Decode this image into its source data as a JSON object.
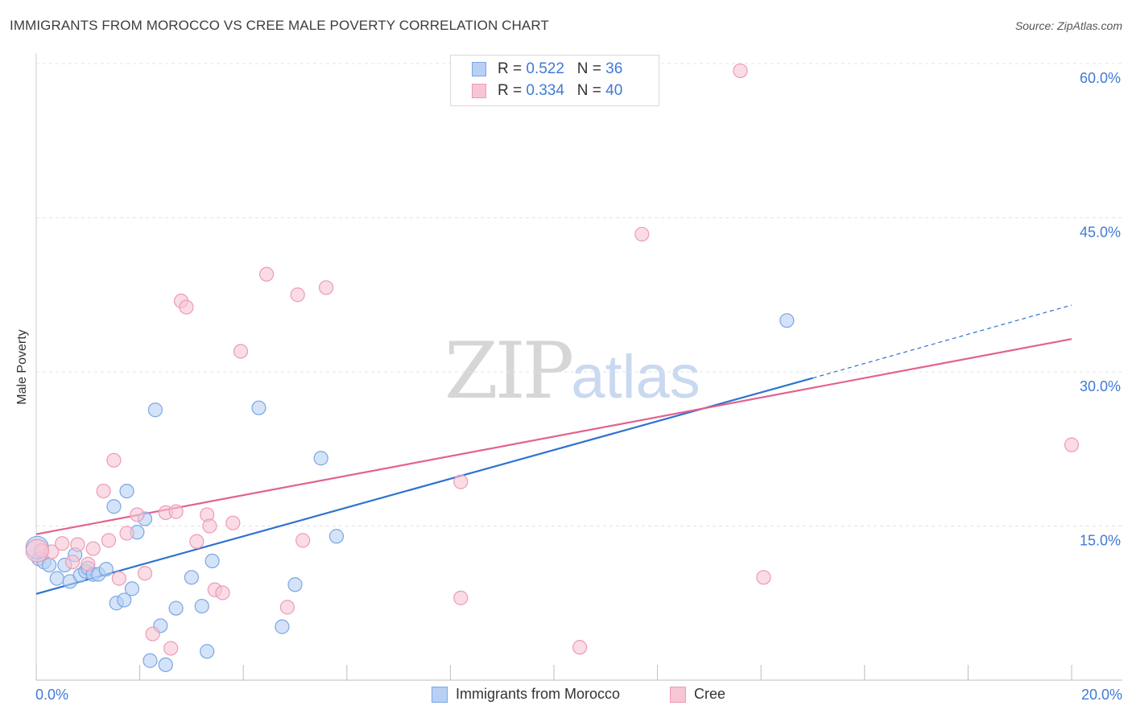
{
  "header": {
    "title": "IMMIGRANTS FROM MOROCCO VS CREE MALE POVERTY CORRELATION CHART",
    "source": "Source: ZipAtlas.com"
  },
  "legend": {
    "series1": {
      "r_label": "R =",
      "r_value": "0.522",
      "n_label": "N =",
      "n_value": "36"
    },
    "series2": {
      "r_label": "R =",
      "r_value": "0.334",
      "n_label": "N =",
      "n_value": "40"
    }
  },
  "watermark": {
    "zip": "ZIP",
    "atlas": "atlas"
  },
  "colors": {
    "blue_fill": "#b8d0f3",
    "blue_stroke": "#7aa6e6",
    "blue_line": "#2e72d2",
    "pink_fill": "#f7c5d4",
    "pink_stroke": "#ee9ab4",
    "pink_line": "#e2628f",
    "tick_label": "#3f7ad6",
    "grid": "#e3e3e3"
  },
  "chart_data": {
    "type": "scatter",
    "title": "IMMIGRANTS FROM MOROCCO VS CREE MALE POVERTY CORRELATION CHART",
    "xlabel": "",
    "ylabel": "Male Poverty",
    "xlim": [
      0,
      20
    ],
    "ylim": [
      0,
      60
    ],
    "x_tick_labels": [
      "0.0%",
      "20.0%"
    ],
    "y_ticks": [
      15,
      30,
      45,
      60
    ],
    "y_tick_labels": [
      "15.0%",
      "30.0%",
      "45.0%",
      "60.0%"
    ],
    "grid": "horizontal dashed",
    "legend_position": "top-center",
    "series": [
      {
        "name": "Immigrants from Morocco",
        "color": "#b8d0f3",
        "r": 0.522,
        "n": 36,
        "points": [
          [
            0.05,
            11.8
          ],
          [
            0.15,
            11.5
          ],
          [
            0.25,
            11.2
          ],
          [
            0.4,
            9.9
          ],
          [
            0.55,
            11.2
          ],
          [
            0.65,
            9.6
          ],
          [
            0.75,
            12.2
          ],
          [
            0.85,
            10.2
          ],
          [
            0.95,
            10.6
          ],
          [
            1.0,
            10.9
          ],
          [
            1.1,
            10.3
          ],
          [
            1.2,
            10.3
          ],
          [
            1.35,
            10.8
          ],
          [
            1.5,
            16.9
          ],
          [
            1.55,
            7.5
          ],
          [
            1.7,
            7.8
          ],
          [
            1.75,
            18.4
          ],
          [
            1.85,
            8.9
          ],
          [
            1.95,
            14.4
          ],
          [
            2.1,
            15.7
          ],
          [
            2.2,
            1.9
          ],
          [
            2.3,
            26.3
          ],
          [
            2.4,
            5.3
          ],
          [
            2.5,
            1.5
          ],
          [
            2.7,
            7.0
          ],
          [
            3.0,
            10.0
          ],
          [
            3.2,
            7.2
          ],
          [
            3.3,
            2.8
          ],
          [
            3.4,
            11.6
          ],
          [
            4.3,
            26.5
          ],
          [
            4.75,
            5.2
          ],
          [
            5.0,
            9.3
          ],
          [
            5.5,
            21.6
          ],
          [
            5.8,
            14.0
          ],
          [
            14.5,
            35.0
          ],
          [
            0.02,
            12.9
          ]
        ],
        "trend": {
          "x_start": 0,
          "y_start": 8.4,
          "x_end": 15.0,
          "y_end": 29.4,
          "dashed_to_x": 20,
          "dashed_to_y": 36.5
        }
      },
      {
        "name": "Cree",
        "color": "#f7c5d4",
        "r": 0.334,
        "n": 40,
        "points": [
          [
            0.1,
            12.6
          ],
          [
            0.3,
            12.5
          ],
          [
            0.5,
            13.3
          ],
          [
            0.7,
            11.5
          ],
          [
            0.8,
            13.2
          ],
          [
            1.0,
            11.3
          ],
          [
            1.1,
            12.8
          ],
          [
            1.3,
            18.4
          ],
          [
            1.4,
            13.6
          ],
          [
            1.5,
            21.4
          ],
          [
            1.6,
            9.9
          ],
          [
            1.75,
            14.3
          ],
          [
            1.95,
            16.1
          ],
          [
            2.1,
            10.4
          ],
          [
            2.25,
            4.5
          ],
          [
            2.5,
            16.3
          ],
          [
            2.6,
            3.1
          ],
          [
            2.7,
            16.4
          ],
          [
            2.8,
            36.9
          ],
          [
            2.9,
            36.3
          ],
          [
            3.1,
            13.5
          ],
          [
            3.3,
            16.1
          ],
          [
            3.35,
            15.0
          ],
          [
            3.45,
            8.8
          ],
          [
            3.6,
            8.5
          ],
          [
            3.8,
            15.3
          ],
          [
            3.95,
            32.0
          ],
          [
            4.45,
            39.5
          ],
          [
            4.85,
            7.1
          ],
          [
            5.05,
            37.5
          ],
          [
            5.15,
            13.6
          ],
          [
            5.6,
            38.2
          ],
          [
            8.2,
            19.3
          ],
          [
            8.2,
            8.0
          ],
          [
            10.5,
            3.2
          ],
          [
            11.7,
            43.4
          ],
          [
            13.6,
            59.3
          ],
          [
            14.05,
            10.0
          ],
          [
            20.0,
            22.9
          ],
          [
            0.02,
            12.6
          ]
        ],
        "trend": {
          "x_start": 0,
          "y_start": 14.2,
          "x_end": 20,
          "y_end": 33.2
        }
      }
    ]
  }
}
